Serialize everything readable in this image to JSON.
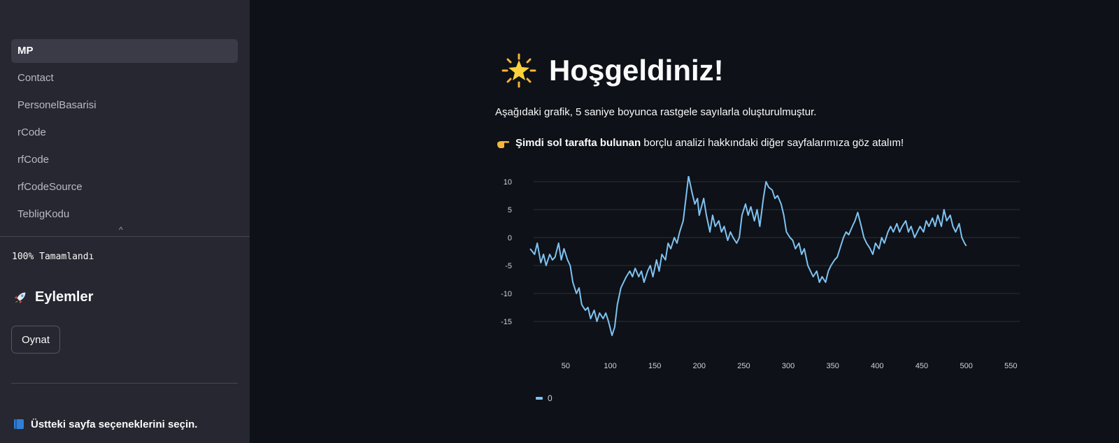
{
  "sidebar": {
    "nav": [
      {
        "label": "MP",
        "active": true
      },
      {
        "label": "Contact",
        "active": false
      },
      {
        "label": "PersonelBasarisi",
        "active": false
      },
      {
        "label": "rCode",
        "active": false
      },
      {
        "label": "rfCode",
        "active": false
      },
      {
        "label": "rfCodeSource",
        "active": false
      },
      {
        "label": "TebligKodu",
        "active": false
      }
    ],
    "collapse_glyph": "^",
    "progress_text": "100% Tamamlandı",
    "actions_header": "Eylemler",
    "actions_icon": "rocket-icon",
    "play_button": "Oynat",
    "hint": "Üstteki sayfa seçeneklerini seçin.",
    "hint_icon": "blue-book-icon"
  },
  "main": {
    "title": "Hoşgeldiniz!",
    "title_icon": "glowing-star-icon",
    "line1": "Aşağıdaki grafik, 5 saniye boyunca rastgele sayılarla oluşturulmuştur.",
    "line2_bold": "Şimdi sol tarafta bulunan",
    "line2_rest": " borçlu analizi hakkındaki diğer sayfalarımıza göz atalım!",
    "line2_icon": "pointing-hand-icon"
  },
  "colors": {
    "line": "#7ec3f2",
    "grid": "#2c2f3a",
    "bg": "#0e1117",
    "sidebar": "#262730"
  },
  "chart_data": {
    "type": "line",
    "title": "",
    "xlabel": "",
    "ylabel": "",
    "xlim": [
      10,
      560
    ],
    "ylim": [
      -19,
      11
    ],
    "x_ticks": [
      50,
      100,
      150,
      200,
      250,
      300,
      350,
      400,
      450,
      500,
      550
    ],
    "y_ticks": [
      10,
      5,
      0,
      -5,
      -10,
      -15
    ],
    "legend_position": "bottom-left",
    "series": [
      {
        "name": "0",
        "color": "#7ec3f2",
        "points": [
          [
            10,
            -2
          ],
          [
            15,
            -3
          ],
          [
            18,
            -1
          ],
          [
            22,
            -4.5
          ],
          [
            25,
            -3
          ],
          [
            28,
            -5
          ],
          [
            32,
            -3
          ],
          [
            35,
            -4
          ],
          [
            38,
            -3.5
          ],
          [
            42,
            -1
          ],
          [
            45,
            -4
          ],
          [
            48,
            -2
          ],
          [
            52,
            -4
          ],
          [
            55,
            -5
          ],
          [
            58,
            -8
          ],
          [
            62,
            -10
          ],
          [
            65,
            -9
          ],
          [
            68,
            -12
          ],
          [
            72,
            -13
          ],
          [
            75,
            -12.5
          ],
          [
            78,
            -14.5
          ],
          [
            82,
            -13
          ],
          [
            85,
            -15
          ],
          [
            88,
            -13.5
          ],
          [
            92,
            -14.5
          ],
          [
            95,
            -13.5
          ],
          [
            98,
            -15
          ],
          [
            102,
            -17.5
          ],
          [
            105,
            -16
          ],
          [
            108,
            -12
          ],
          [
            112,
            -9
          ],
          [
            115,
            -8
          ],
          [
            118,
            -7
          ],
          [
            122,
            -6
          ],
          [
            125,
            -7
          ],
          [
            128,
            -5.5
          ],
          [
            132,
            -7
          ],
          [
            135,
            -6
          ],
          [
            138,
            -8
          ],
          [
            142,
            -6
          ],
          [
            145,
            -5
          ],
          [
            148,
            -7
          ],
          [
            152,
            -4
          ],
          [
            155,
            -6
          ],
          [
            158,
            -3
          ],
          [
            162,
            -4
          ],
          [
            165,
            -1
          ],
          [
            168,
            -2
          ],
          [
            172,
            0
          ],
          [
            175,
            -1
          ],
          [
            178,
            1
          ],
          [
            182,
            3
          ],
          [
            185,
            7
          ],
          [
            188,
            11
          ],
          [
            192,
            8
          ],
          [
            195,
            6
          ],
          [
            198,
            7
          ],
          [
            200,
            4
          ],
          [
            205,
            7
          ],
          [
            208,
            4
          ],
          [
            212,
            1
          ],
          [
            215,
            4
          ],
          [
            218,
            2
          ],
          [
            222,
            3
          ],
          [
            225,
            1
          ],
          [
            228,
            2
          ],
          [
            232,
            -0.5
          ],
          [
            235,
            1
          ],
          [
            238,
            0
          ],
          [
            242,
            -1
          ],
          [
            245,
            0
          ],
          [
            248,
            4
          ],
          [
            252,
            6
          ],
          [
            255,
            4
          ],
          [
            258,
            5.5
          ],
          [
            262,
            3
          ],
          [
            265,
            5
          ],
          [
            268,
            2
          ],
          [
            272,
            7
          ],
          [
            275,
            10
          ],
          [
            278,
            9
          ],
          [
            282,
            8.5
          ],
          [
            285,
            7
          ],
          [
            288,
            7.5
          ],
          [
            292,
            6
          ],
          [
            295,
            4
          ],
          [
            298,
            1
          ],
          [
            302,
            0
          ],
          [
            305,
            -0.5
          ],
          [
            308,
            -2
          ],
          [
            312,
            -1
          ],
          [
            315,
            -3
          ],
          [
            318,
            -2
          ],
          [
            322,
            -5
          ],
          [
            325,
            -6
          ],
          [
            328,
            -7
          ],
          [
            332,
            -6
          ],
          [
            335,
            -8
          ],
          [
            338,
            -7
          ],
          [
            342,
            -8
          ],
          [
            345,
            -6
          ],
          [
            348,
            -5
          ],
          [
            352,
            -4
          ],
          [
            355,
            -3.5
          ],
          [
            358,
            -2
          ],
          [
            362,
            0
          ],
          [
            365,
            1
          ],
          [
            368,
            0.5
          ],
          [
            372,
            2
          ],
          [
            375,
            3
          ],
          [
            378,
            4.5
          ],
          [
            382,
            2
          ],
          [
            385,
            0
          ],
          [
            388,
            -1
          ],
          [
            392,
            -2
          ],
          [
            395,
            -3
          ],
          [
            398,
            -1
          ],
          [
            402,
            -2
          ],
          [
            405,
            0
          ],
          [
            408,
            -1
          ],
          [
            412,
            1
          ],
          [
            415,
            2
          ],
          [
            418,
            1
          ],
          [
            422,
            2.5
          ],
          [
            425,
            1
          ],
          [
            428,
            2
          ],
          [
            432,
            3
          ],
          [
            435,
            1
          ],
          [
            438,
            2
          ],
          [
            442,
            0
          ],
          [
            445,
            1
          ],
          [
            448,
            2
          ],
          [
            452,
            1
          ],
          [
            455,
            3
          ],
          [
            458,
            2
          ],
          [
            462,
            3.5
          ],
          [
            465,
            2
          ],
          [
            468,
            4
          ],
          [
            472,
            2
          ],
          [
            475,
            5
          ],
          [
            478,
            3
          ],
          [
            482,
            4
          ],
          [
            485,
            2
          ],
          [
            488,
            1
          ],
          [
            492,
            2.5
          ],
          [
            495,
            0
          ],
          [
            498,
            -1
          ],
          [
            500,
            -1.5
          ]
        ]
      }
    ]
  }
}
